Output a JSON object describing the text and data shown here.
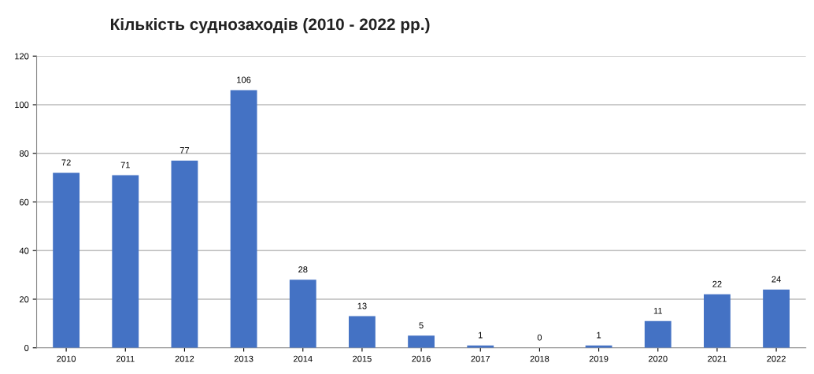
{
  "chart_data": {
    "type": "bar",
    "title": "Кількість суднозаходів (2010 - 2022 рр.)",
    "categories": [
      "2010",
      "2011",
      "2012",
      "2013",
      "2014",
      "2015",
      "2016",
      "2017",
      "2018",
      "2019",
      "2020",
      "2021",
      "2022"
    ],
    "values": [
      72,
      71,
      77,
      106,
      28,
      13,
      5,
      1,
      0,
      1,
      11,
      22,
      24
    ],
    "color": "#4472c4",
    "ylim": [
      0,
      120
    ],
    "yticks": [
      0,
      20,
      40,
      60,
      80,
      100,
      120
    ],
    "grid": "y",
    "data_labels": true
  }
}
